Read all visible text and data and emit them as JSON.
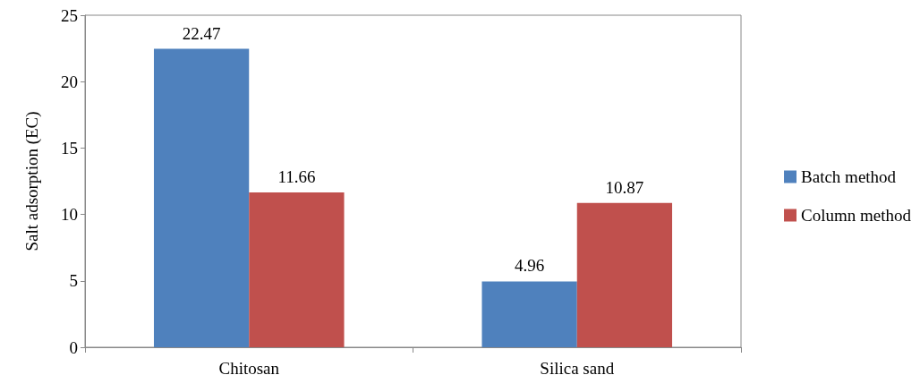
{
  "chart_data": {
    "type": "bar",
    "ylabel": "Salt adsorption (EC)",
    "categories": [
      "Chitosan",
      "Silica sand"
    ],
    "series": [
      {
        "name": "Batch method",
        "color": "#4f81bd",
        "values": [
          22.47,
          4.96
        ]
      },
      {
        "name": "Column method",
        "color": "#c0504d",
        "values": [
          11.66,
          10.87
        ]
      }
    ],
    "ylim": [
      0,
      25
    ],
    "yticks": [
      0,
      5,
      10,
      15,
      20,
      25
    ],
    "grid": false,
    "legend": "right",
    "data_labels": true
  }
}
